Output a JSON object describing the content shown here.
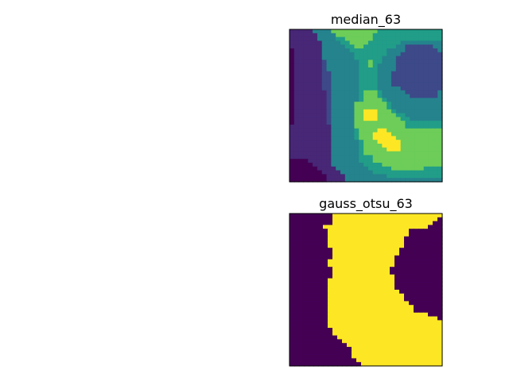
{
  "chart_data": [
    {
      "type": "heatmap",
      "title": "median_63",
      "xlabel": "",
      "ylabel": "",
      "colormap": "viridis",
      "grid": false,
      "ticks": "none",
      "value_range": [
        0,
        9
      ],
      "rows": [
        "111114444777777777755555555555555",
        "111111444477777777555555555555555",
        "111111444455777777555555555555555",
        "111111144445577775555555444444444",
        "111111144444557755555554422222244",
        "011111144444455555555444422222224",
        "011111144444445555555444222222222",
        "011111144444445555554442222222222",
        "011111124444444557554442222222222",
        "011111124444444557544442222222222",
        "011111124444444555544442222222222",
        "011111122444444555544422222222222",
        "011111122444444555544422222222222",
        "011111122444444555544422222222222",
        "011111122444444555544422222222222",
        "011111122444444555544444222222222",
        "011111112444444577754444422222224",
        "011111112444444577754444442222224",
        "011111112444444577775444444444444",
        "011111112444447777777544444444444",
        "011111112444447777777544444444444",
        "011111112444447799977754444444444",
        "011111112444447799977775544444444",
        "011111112444447799977777554444444",
        "011111112444447777777777755555555",
        "111111111444447777777777755555555",
        "111111111444445777799777777777777",
        "111111111444445777999977777777777",
        "111111111444445777999997777777777",
        "111111111444444577799999777777777",
        "111111111444444577779999777777777",
        "111111111444444577777999777777777",
        "111111111444444577777777777777777",
        "111111111444444555777777777777777",
        "000011111444444555777777777777777",
        "000001111444444455557777777777777",
        "000000111144444445555577777775555",
        "000000011114444444555555555555555",
        "000000001111444444444555555555555",
        "000000001111444444444444444444444"
      ]
    },
    {
      "type": "heatmap",
      "title": "gauss_otsu_63",
      "xlabel": "",
      "ylabel": "",
      "colormap": "viridis",
      "grid": false,
      "ticks": "none",
      "value_range": [
        0,
        1
      ],
      "rows": [
        "00000000011111111111111111111111",
        "00000000011111111111111111111110",
        "00000000011111111111111111111100",
        "00000001111111111111111111111000",
        "00000000111111111111111110000000",
        "00000000111111111111111110000000",
        "00000000111111111111111100000000",
        "00000000111111111111111100000000",
        "00000000111111111111111100000000",
        "00000000011111111111111000000000",
        "00000000011111111111111000000000",
        "00000000011111111111110000000000",
        "00000000111111111111110000000000",
        "00000000111111111111110000000000",
        "00000000011111111111100000000000",
        "00000000011111111111100000000000",
        "00000000011111111111110000000000",
        "00000000111111111111110000000000",
        "00000000111111111111110000000000",
        "00000000111111111111110000000000",
        "00000000111111111111111000000000",
        "00000000111111111111111100000000",
        "00000000111111111111111100000000",
        "00000000111111111111111110000000",
        "00000000111111111111111111000000",
        "00000000111111111111111111000000",
        "00000000111111111111111111111000",
        "00000000111111111111111111111110",
        "00000000111111111111111111111111",
        "00000000111111111111111111111111",
        "00000000011111111111111111111111",
        "00000000011111111111111111111111",
        "00000000001111111111111111111111",
        "00000000000111111111111111111111",
        "00000000000011111111111111111111",
        "00000000000001111111111111111111",
        "00000000000001111111111111111111",
        "00000000000001111111111111111111",
        "00000000000000111111111111111111",
        "00000000000000011111111111111111"
      ]
    }
  ]
}
